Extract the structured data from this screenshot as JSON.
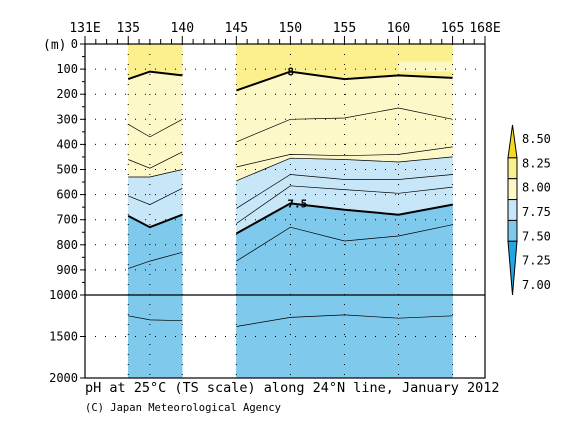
{
  "chart_data": {
    "type": "heatmap",
    "title": "pH at 25°C (TS scale) along 24°N line, January 2012",
    "credit": "(C) Japan Meteorological Agency",
    "xlabel": "",
    "ylabel": "(m)",
    "longitude_ticks": [
      {
        "value": 131,
        "label": "131E"
      },
      {
        "value": 135,
        "label": "135"
      },
      {
        "value": 140,
        "label": "140"
      },
      {
        "value": 145,
        "label": "145"
      },
      {
        "value": 150,
        "label": "150"
      },
      {
        "value": 155,
        "label": "155"
      },
      {
        "value": 160,
        "label": "160"
      },
      {
        "value": 165,
        "label": "165"
      },
      {
        "value": 168,
        "label": "168E"
      }
    ],
    "xlim": [
      131,
      168
    ],
    "depth_ticks_upper": [
      {
        "value": 0,
        "label": "0"
      },
      {
        "value": 100,
        "label": "100"
      },
      {
        "value": 200,
        "label": "200"
      },
      {
        "value": 300,
        "label": "300"
      },
      {
        "value": 400,
        "label": "400"
      },
      {
        "value": 500,
        "label": "500"
      },
      {
        "value": 600,
        "label": "600"
      },
      {
        "value": 700,
        "label": "700"
      },
      {
        "value": 800,
        "label": "800"
      },
      {
        "value": 900,
        "label": "900"
      },
      {
        "value": 1000,
        "label": "1000"
      }
    ],
    "depth_ticks_lower": [
      {
        "value": 1500,
        "label": "1500"
      },
      {
        "value": 2000,
        "label": "2000"
      }
    ],
    "depth_break": 1000,
    "ylim": [
      2000,
      0
    ],
    "colorbar": {
      "levels": [
        {
          "value": 8.5,
          "label": "8.50"
        },
        {
          "value": 8.25,
          "label": "8.25"
        },
        {
          "value": 8.0,
          "label": "8.00"
        },
        {
          "value": 7.75,
          "label": "7.75"
        },
        {
          "value": 7.5,
          "label": "7.50"
        },
        {
          "value": 7.25,
          "label": "7.25"
        },
        {
          "value": 7.0,
          "label": "7.00"
        }
      ],
      "colors": [
        "#f5d820",
        "#fbef8e",
        "#fdf8c8",
        "#c7e6f7",
        "#7ec9ec",
        "#22a7e2"
      ]
    },
    "sections": [
      {
        "lon": [
          135,
          137,
          140
        ],
        "isolines": [
          {
            "value": 8.0,
            "depth": [
              140,
              110,
              125
            ],
            "bold": true,
            "label": ""
          },
          {
            "value": 7.9,
            "depth": [
              320,
              370,
              300
            ],
            "bold": false,
            "label": ""
          },
          {
            "value": 7.8,
            "depth": [
              460,
              495,
              430
            ],
            "bold": false,
            "label": ""
          },
          {
            "value": 7.75,
            "depth": [
              530,
              530,
              500
            ],
            "bold": false,
            "label": ""
          },
          {
            "value": 7.65,
            "depth": [
              605,
              640,
              575
            ],
            "bold": false,
            "label": ""
          },
          {
            "value": 7.5,
            "depth": [
              685,
              730,
              680
            ],
            "bold": true,
            "label": ""
          },
          {
            "value": 7.35,
            "depth": [
              895,
              865,
              830
            ],
            "bold": false,
            "label": ""
          },
          {
            "value": 7.3,
            "depth": [
              1250,
              1300,
              1310
            ],
            "bold": false,
            "label": ""
          }
        ],
        "bottom": 2000
      },
      {
        "lon": [
          145,
          150,
          155,
          160,
          165
        ],
        "isolines": [
          {
            "value": 8.0,
            "depth": [
              185,
              110,
              140,
              125,
              135
            ],
            "bold": true,
            "label": "8"
          },
          {
            "value": 7.9,
            "depth": [
              390,
              300,
              295,
              255,
              300
            ],
            "bold": false,
            "label": ""
          },
          {
            "value": 7.85,
            "depth": [
              490,
              440,
              445,
              440,
              410
            ],
            "bold": false,
            "label": ""
          },
          {
            "value": 7.75,
            "depth": [
              545,
              455,
              460,
              470,
              450
            ],
            "bold": false,
            "label": ""
          },
          {
            "value": 7.65,
            "depth": [
              655,
              520,
              540,
              540,
              520
            ],
            "bold": false,
            "label": ""
          },
          {
            "value": 7.6,
            "depth": [
              715,
              565,
              580,
              595,
              570
            ],
            "bold": false,
            "label": ""
          },
          {
            "value": 7.5,
            "depth": [
              755,
              635,
              660,
              680,
              640
            ],
            "bold": true,
            "label": "7.5"
          },
          {
            "value": 7.4,
            "depth": [
              865,
              730,
              785,
              765,
              720
            ],
            "bold": false,
            "label": ""
          },
          {
            "value": 7.3,
            "depth": [
              1380,
              1270,
              1240,
              1280,
              1250
            ],
            "bold": false,
            "label": ""
          }
        ],
        "bottom": 2000
      }
    ],
    "grid": "dotted",
    "legend": "right"
  }
}
